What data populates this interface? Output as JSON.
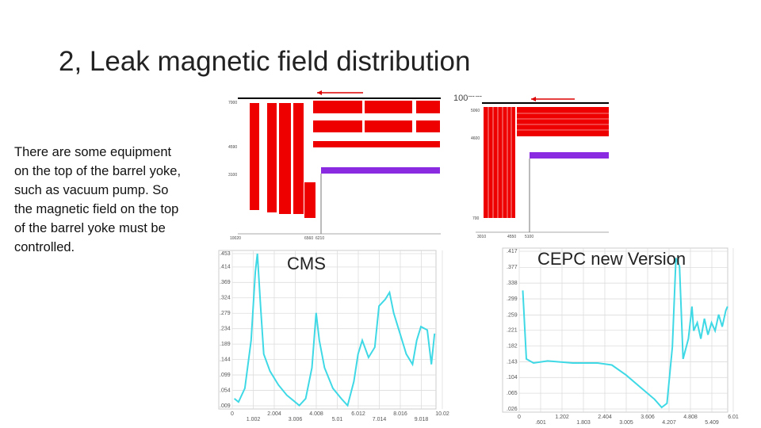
{
  "title": "2, Leak magnetic field distribution",
  "body": "There are some equipment on the top of the barrel yoke, such as vacuum pump. So the magnetic field on the top of the  barrel yoke must be controlled.",
  "scale_label": "100mm",
  "diagrams": [
    {
      "labels": [
        "7000",
        "4590",
        "3100",
        "10020",
        "6560",
        "6210"
      ]
    },
    {
      "labels": [
        "5060",
        "4600",
        "700",
        "3010",
        "4550",
        "5100"
      ]
    }
  ],
  "plots": [
    {
      "type": "line",
      "caption": "CMS",
      "color": "#3fd9e6",
      "xlim": [
        0,
        10.02
      ],
      "ylim": [
        0.009,
        0.453
      ],
      "xticks": [
        0,
        1.002,
        2.004,
        3.006,
        4.008,
        5.01,
        6.012,
        7.014,
        8.016,
        9.018,
        10.02
      ],
      "yticks": [
        {
          "value": 0.453,
          "label": ".453"
        },
        {
          "value": 0.414,
          "label": ".414"
        },
        {
          "value": 0.369,
          "label": ".369"
        },
        {
          "value": 0.324,
          "label": ".324"
        },
        {
          "value": 0.279,
          "label": ".279"
        },
        {
          "value": 0.234,
          "label": ".234"
        },
        {
          "value": 0.189,
          "label": ".189"
        },
        {
          "value": 0.144,
          "label": ".144"
        },
        {
          "value": 0.099,
          "label": ".099"
        },
        {
          "value": 0.054,
          "label": ".054"
        },
        {
          "value": 0.009,
          "label": ".009"
        }
      ],
      "x": [
        0.1,
        0.3,
        0.6,
        0.9,
        1.1,
        1.2,
        1.35,
        1.5,
        1.8,
        2.2,
        2.6,
        3.0,
        3.2,
        3.5,
        3.8,
        4.0,
        4.15,
        4.4,
        4.8,
        5.2,
        5.5,
        5.8,
        6.0,
        6.2,
        6.5,
        6.8,
        7.0,
        7.3,
        7.5,
        7.7,
        8.0,
        8.3,
        8.6,
        8.8,
        9.0,
        9.3,
        9.5,
        9.65
      ],
      "values": [
        0.03,
        0.02,
        0.06,
        0.2,
        0.4,
        0.453,
        0.3,
        0.16,
        0.11,
        0.07,
        0.04,
        0.02,
        0.01,
        0.03,
        0.12,
        0.28,
        0.2,
        0.12,
        0.06,
        0.03,
        0.01,
        0.08,
        0.16,
        0.2,
        0.15,
        0.18,
        0.3,
        0.32,
        0.34,
        0.28,
        0.22,
        0.16,
        0.13,
        0.2,
        0.24,
        0.23,
        0.13,
        0.22
      ]
    },
    {
      "type": "line",
      "caption": "CEPC new Version",
      "color": "#3fd9e6",
      "xlim": [
        0,
        6.01
      ],
      "ylim": [
        0.026,
        0.417
      ],
      "xticks": [
        0,
        {
          "value": 0.601,
          "label": ".601"
        },
        1.202,
        1.803,
        2.404,
        3.005,
        3.606,
        4.207,
        4.808,
        5.409,
        6.01
      ],
      "yticks": [
        {
          "value": 0.417,
          "label": ".417"
        },
        {
          "value": 0.377,
          "label": ".377"
        },
        {
          "value": 0.338,
          "label": ".338"
        },
        {
          "value": 0.299,
          "label": ".299"
        },
        {
          "value": 0.259,
          "label": ".259"
        },
        {
          "value": 0.221,
          "label": ".221"
        },
        {
          "value": 0.182,
          "label": ".182"
        },
        {
          "value": 0.143,
          "label": ".143"
        },
        {
          "value": 0.104,
          "label": ".104"
        },
        {
          "value": 0.065,
          "label": ".065"
        },
        {
          "value": 0.026,
          "label": ".026"
        }
      ],
      "x": [
        0.1,
        0.2,
        0.4,
        0.8,
        1.5,
        2.2,
        2.6,
        3.0,
        3.4,
        3.8,
        4.0,
        4.15,
        4.3,
        4.4,
        4.5,
        4.6,
        4.75,
        4.85,
        4.9,
        5.0,
        5.1,
        5.2,
        5.3,
        5.4,
        5.5,
        5.6,
        5.7,
        5.8,
        5.85
      ],
      "values": [
        0.32,
        0.15,
        0.14,
        0.145,
        0.14,
        0.14,
        0.135,
        0.11,
        0.08,
        0.05,
        0.03,
        0.04,
        0.18,
        0.4,
        0.38,
        0.15,
        0.2,
        0.28,
        0.22,
        0.24,
        0.2,
        0.25,
        0.21,
        0.24,
        0.22,
        0.26,
        0.23,
        0.27,
        0.28
      ]
    }
  ]
}
